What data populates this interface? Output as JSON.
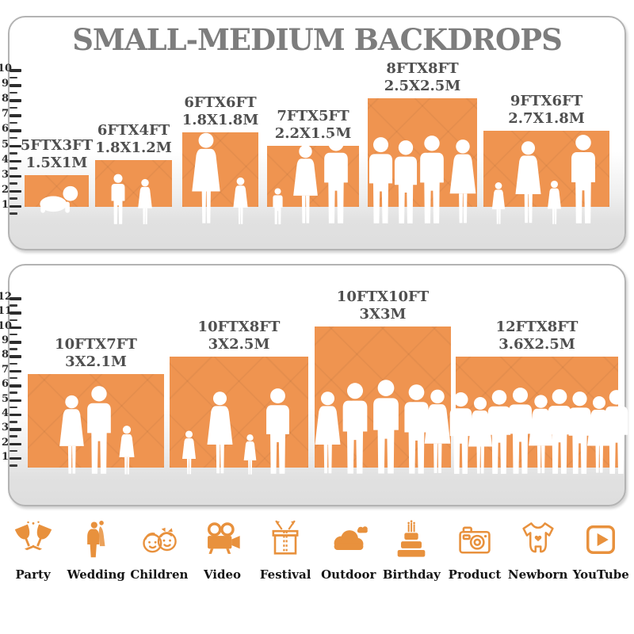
{
  "title": "SMALL-MEDIUM BACKDROPS",
  "colors": {
    "accent": "#EF9450",
    "icon": "#E8913D",
    "title": "#7D7D7D",
    "label": "#4F4F4F"
  },
  "panel1": {
    "ruler": [
      "10",
      "9",
      "8",
      "7",
      "6",
      "5",
      "4",
      "3",
      "2",
      "1"
    ],
    "backdrops": [
      {
        "ft": "5FTX3FT",
        "m": "1.5X1M"
      },
      {
        "ft": "6FTX4FT",
        "m": "1.8X1.2M"
      },
      {
        "ft": "6FTX6FT",
        "m": "1.8X1.8M"
      },
      {
        "ft": "7FTX5FT",
        "m": "2.2X1.5M"
      },
      {
        "ft": "8FTX8FT",
        "m": "2.5X2.5M"
      },
      {
        "ft": "9FTX6FT",
        "m": "2.7X1.8M"
      }
    ]
  },
  "panel2": {
    "ruler": [
      "12",
      "11",
      "10",
      "9",
      "8",
      "7",
      "6",
      "5",
      "4",
      "3",
      "2",
      "1"
    ],
    "backdrops": [
      {
        "ft": "10FTX7FT",
        "m": "3X2.1M"
      },
      {
        "ft": "10FTX8FT",
        "m": "3X2.5M"
      },
      {
        "ft": "10FTX10FT",
        "m": "3X3M"
      },
      {
        "ft": "12FTX8FT",
        "m": "3.6X2.5M"
      }
    ]
  },
  "categories": [
    {
      "label": "Party"
    },
    {
      "label": "Wedding"
    },
    {
      "label": "Children"
    },
    {
      "label": "Video"
    },
    {
      "label": "Festival"
    },
    {
      "label": "Outdoor"
    },
    {
      "label": "Birthday"
    },
    {
      "label": "Product"
    },
    {
      "label": "Newborn"
    },
    {
      "label": "YouTube"
    }
  ]
}
